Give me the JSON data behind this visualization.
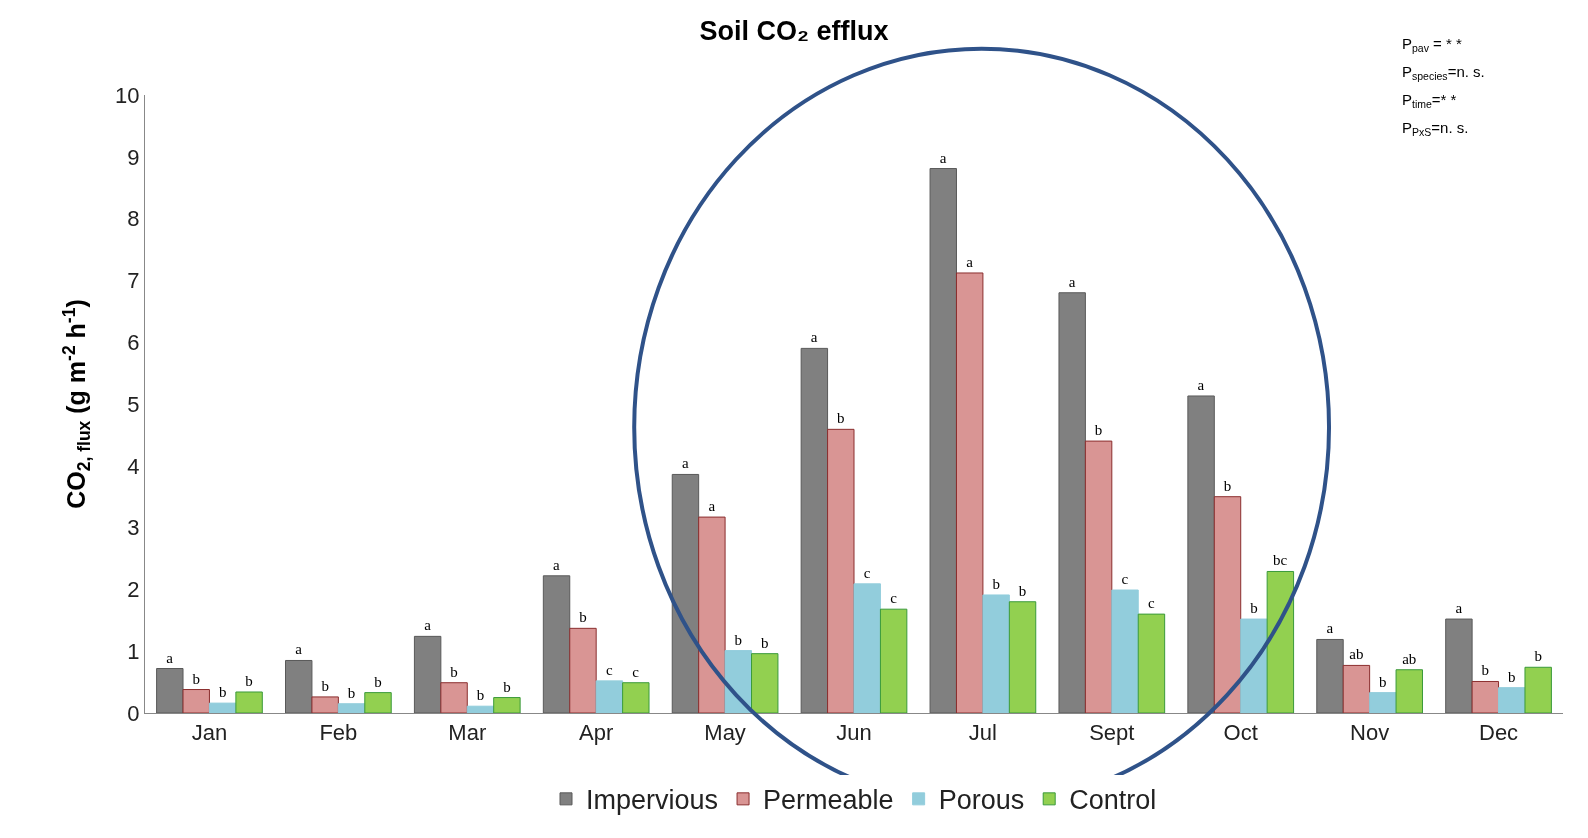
{
  "chart_data": {
    "type": "bar",
    "title": "Soil CO₂ efflux",
    "ylabel": "CO$_{2, flux}$ (g m$^{-2}$ h$^{-1}$)",
    "categories": [
      "Jan",
      "Feb",
      "Mar",
      "Apr",
      "May",
      "Jun",
      "Jul",
      "Sept",
      "Oct",
      "Nov",
      "Dec"
    ],
    "series": [
      {
        "name": "Impervious",
        "color": "#808080",
        "values": [
          0.72,
          0.85,
          1.24,
          2.22,
          3.86,
          5.9,
          8.81,
          6.8,
          5.13,
          1.19,
          1.52
        ],
        "value_labels": [
          "a",
          "a",
          "a",
          "a",
          "a",
          "a",
          "a",
          "a",
          "a",
          "a",
          "a"
        ]
      },
      {
        "name": "Permeable",
        "color": "#d99594",
        "values": [
          0.38,
          0.26,
          0.49,
          1.37,
          3.17,
          4.59,
          7.12,
          4.4,
          3.5,
          0.77,
          0.51
        ],
        "value_labels": [
          "b",
          "b",
          "b",
          "b",
          "a",
          "b",
          "a",
          "b",
          "b",
          "ab",
          "b"
        ]
      },
      {
        "name": "Porous",
        "color": "#92cddc",
        "values": [
          0.16,
          0.15,
          0.11,
          0.52,
          1.01,
          2.09,
          1.91,
          1.99,
          1.52,
          0.33,
          0.41
        ],
        "value_labels": [
          "b",
          "b",
          "b",
          "c",
          "b",
          "c",
          "b",
          "c",
          "b",
          "b",
          "b"
        ]
      },
      {
        "name": "Control",
        "color": "#92d050",
        "values": [
          0.34,
          0.33,
          0.25,
          0.49,
          0.96,
          1.68,
          1.8,
          1.6,
          2.29,
          0.7,
          0.74
        ],
        "value_labels": [
          "b",
          "b",
          "b",
          "c",
          "b",
          "c",
          "b",
          "c",
          "bc",
          "ab",
          "b"
        ]
      }
    ],
    "ylim": [
      0,
      10
    ],
    "yticks": [
      0,
      1,
      2,
      3,
      4,
      5,
      6,
      7,
      8,
      9,
      10
    ],
    "grid": false,
    "legend": "bottom",
    "annotations": [
      "P$_{pav}$ = * *",
      "P$_{species}$=n. s.",
      "P$_{time}$=* *",
      "P$_{PxS}$=n. s."
    ]
  }
}
